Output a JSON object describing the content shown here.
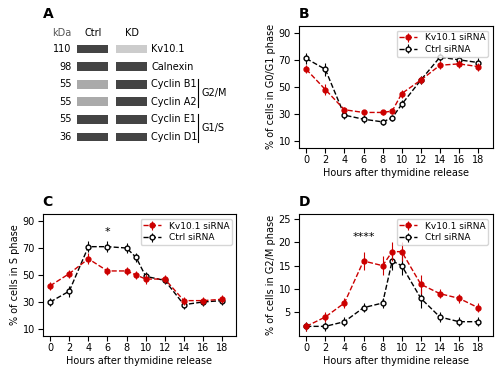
{
  "chart_data": [
    {
      "type": "blot",
      "title": "A",
      "lanes": [
        "Ctrl",
        "KD"
      ],
      "kda_header": "kDa",
      "rows": [
        {
          "label": "Kv10.1",
          "kda": 110,
          "colors": [
            "#444444",
            "#cccccc"
          ]
        },
        {
          "label": "Calnexin",
          "kda": 98,
          "colors": [
            "#444444",
            "#444444"
          ]
        },
        {
          "label": "Cyclin B1",
          "kda": 55,
          "colors": [
            "#aaaaaa",
            "#444444"
          ]
        },
        {
          "label": "Cyclin A2",
          "kda": 55,
          "colors": [
            "#aaaaaa",
            "#444444"
          ]
        },
        {
          "label": "Cyclin E1",
          "kda": 55,
          "colors": [
            "#444444",
            "#444444"
          ]
        },
        {
          "label": "Cyclin D1",
          "kda": 36,
          "colors": [
            "#444444",
            "#444444"
          ]
        }
      ],
      "groups": [
        {
          "label": "G2/M",
          "rows": [
            "Cyclin B1",
            "Cyclin A2"
          ]
        },
        {
          "label": "G1/S",
          "rows": [
            "Cyclin E1",
            "Cyclin D1"
          ]
        }
      ]
    },
    {
      "type": "line",
      "title": "B",
      "x_label": "Hours after thymidine release",
      "y_label": "% of cells in G0/G1 phase",
      "x": [
        0,
        2,
        4,
        6,
        8,
        9,
        10,
        12,
        14,
        16,
        18
      ],
      "xlim": [
        -0.8,
        19.5
      ],
      "xticks": [
        0,
        2,
        4,
        6,
        8,
        10,
        12,
        14,
        16,
        18
      ],
      "ylim": [
        5,
        95
      ],
      "yticks": [
        10,
        30,
        50,
        70,
        90
      ],
      "legend": "upper right",
      "series": [
        {
          "name": "Kv10.1 siRNA",
          "color": "#cc0000",
          "marker": "circle",
          "line_style": "dashed",
          "values": [
            63,
            48,
            33,
            31,
            31,
            32,
            45,
            55,
            66,
            67,
            65
          ],
          "errors": [
            3,
            4,
            2,
            2,
            2,
            2,
            3,
            3,
            3,
            3,
            3
          ]
        },
        {
          "name": "Ctrl siRNA",
          "color": "#000000",
          "marker": "open circle",
          "line_style": "dashed",
          "values": [
            71,
            63,
            29,
            26,
            24,
            27,
            37,
            55,
            72,
            70,
            68
          ],
          "errors": [
            4,
            5,
            3,
            3,
            2,
            2,
            3,
            3,
            3,
            3,
            3
          ]
        }
      ]
    },
    {
      "type": "line",
      "title": "C",
      "x_label": "Hours after thymidine release",
      "y_label": "% of cells in S phase",
      "x": [
        0,
        2,
        4,
        6,
        8,
        9,
        10,
        12,
        14,
        16,
        18
      ],
      "xlim": [
        -0.8,
        19.5
      ],
      "xticks": [
        0,
        2,
        4,
        6,
        8,
        10,
        12,
        14,
        16,
        18
      ],
      "ylim": [
        5,
        95
      ],
      "yticks": [
        10,
        30,
        50,
        70,
        90
      ],
      "legend": "upper right",
      "annotations": [
        {
          "text": "*",
          "x": 6,
          "y": 78
        }
      ],
      "series": [
        {
          "name": "Kv10.1 siRNA",
          "color": "#cc0000",
          "marker": "circle",
          "line_style": "dashed",
          "values": [
            42,
            51,
            62,
            53,
            53,
            50,
            47,
            47,
            31,
            31,
            32
          ],
          "errors": [
            3,
            3,
            4,
            3,
            3,
            3,
            4,
            3,
            3,
            3,
            3
          ]
        },
        {
          "name": "Ctrl siRNA",
          "color": "#000000",
          "marker": "open circle",
          "line_style": "dashed",
          "values": [
            30,
            38,
            71,
            71,
            70,
            63,
            49,
            46,
            28,
            30,
            31
          ],
          "errors": [
            3,
            4,
            4,
            4,
            4,
            3,
            3,
            3,
            3,
            3,
            3
          ]
        }
      ]
    },
    {
      "type": "line",
      "title": "D",
      "x_label": "Hours after thymidine release",
      "y_label": "% of cells in G2/M phase",
      "x": [
        0,
        2,
        4,
        6,
        8,
        9,
        10,
        12,
        14,
        16,
        18
      ],
      "xlim": [
        -0.8,
        19.5
      ],
      "xticks": [
        0,
        2,
        4,
        6,
        8,
        10,
        12,
        14,
        16,
        18
      ],
      "ylim": [
        0,
        26
      ],
      "yticks": [
        5,
        10,
        15,
        20,
        25
      ],
      "legend": "upper right",
      "annotations": [
        {
          "text": "****",
          "x": 6,
          "y": 20
        }
      ],
      "series": [
        {
          "name": "Kv10.1 siRNA",
          "color": "#cc0000",
          "marker": "circle",
          "line_style": "dashed",
          "values": [
            2,
            4,
            7,
            16,
            15,
            18,
            18,
            11,
            9,
            8,
            6
          ],
          "errors": [
            1,
            1,
            1,
            2,
            2,
            2,
            2,
            2,
            1,
            1,
            1
          ]
        },
        {
          "name": "Ctrl siRNA",
          "color": "#000000",
          "marker": "open circle",
          "line_style": "dashed",
          "values": [
            2,
            2,
            3,
            6,
            7,
            16,
            15,
            8,
            4,
            3,
            3
          ],
          "errors": [
            1,
            1,
            1,
            1,
            1,
            2,
            2,
            2,
            1,
            1,
            1
          ]
        }
      ]
    }
  ]
}
